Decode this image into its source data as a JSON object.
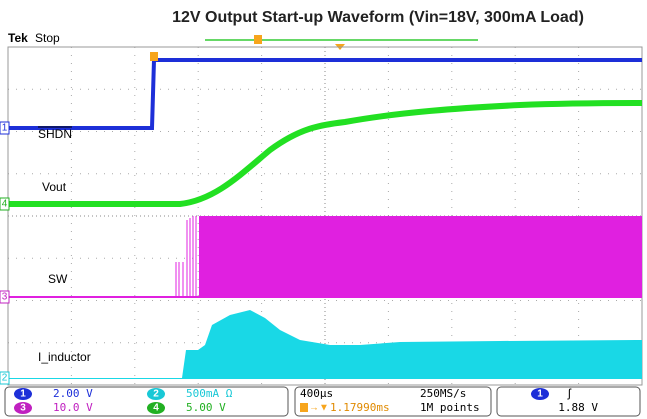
{
  "title": "12V Output Start-up Waveform (Vin=18V, 300mA Load)",
  "status": {
    "brand": "Tek",
    "state": "Stop"
  },
  "trace_labels": [
    "SHDN",
    "Vout",
    "SW",
    "I_inductor"
  ],
  "channels": [
    {
      "number": "1",
      "scale": "2.00 V"
    },
    {
      "number": "2",
      "scale": "500mA Ω"
    },
    {
      "number": "3",
      "scale": "10.0 V"
    },
    {
      "number": "4",
      "scale": "5.00 V"
    }
  ],
  "timebase": {
    "time_div": "400µs",
    "sample_rate": "250MS/s",
    "trigger_position": "1.17990ms",
    "record_length": "1M points"
  },
  "trigger": {
    "source": "1",
    "level": "1.88 V"
  }
}
